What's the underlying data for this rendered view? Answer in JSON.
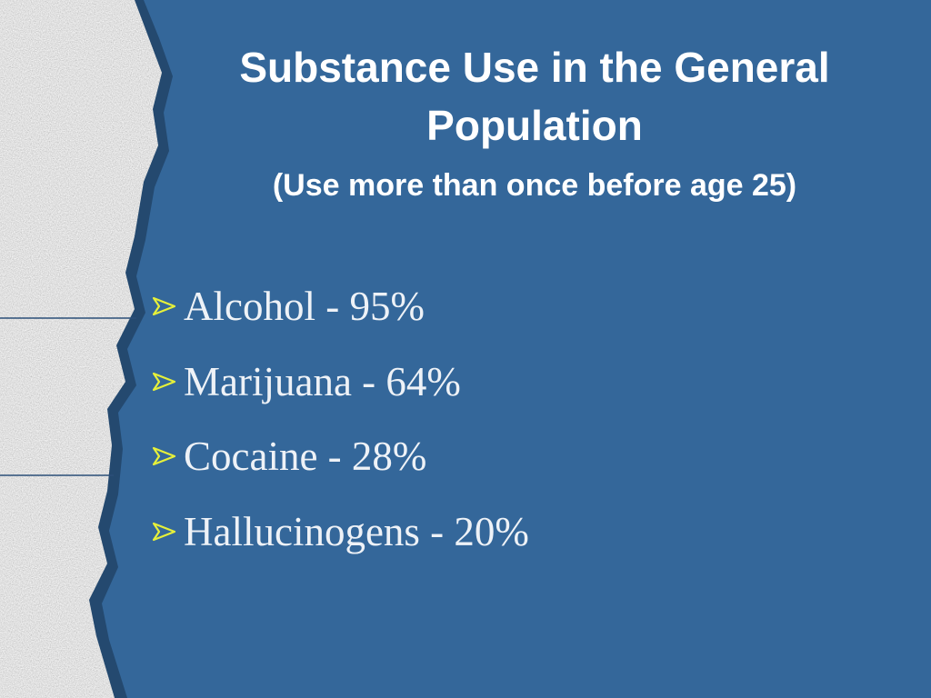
{
  "slide": {
    "title": "Substance Use in the General Population",
    "subtitle": "(Use more than once before age 25)",
    "bullets": [
      "Alcohol - 95%",
      "Marijuana - 64%",
      "Cocaine - 28%",
      "Hallucinogens - 20%"
    ]
  }
}
